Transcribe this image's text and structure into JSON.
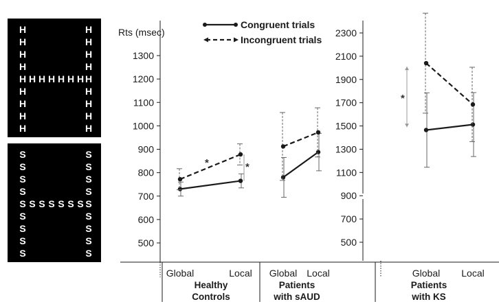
{
  "stimuli": [
    {
      "letter": "H",
      "shape": "H"
    },
    {
      "letter": "S",
      "shape": "H"
    }
  ],
  "chart_data": {
    "type": "line",
    "ylabel": "Rts (msec)",
    "legend_placement": "top",
    "categories": [
      "Global",
      "Local"
    ],
    "groups": [
      {
        "label_lines": [
          "Healthy",
          "Controls"
        ],
        "yticks": [
          500,
          600,
          700,
          800,
          900,
          1000,
          1100,
          1200,
          1300
        ],
        "ylim": [
          420,
          1400
        ],
        "series": [
          {
            "name": "Congruent trials",
            "values": [
              730,
              765
            ],
            "err": [
              30,
              30
            ]
          },
          {
            "name": "Incongruent trials",
            "values": [
              772,
              878
            ],
            "err": [
              45,
              45
            ]
          }
        ],
        "significance": [
          "*",
          "*"
        ]
      },
      {
        "label_lines": [
          "Patients",
          "with sAUD"
        ],
        "series": [
          {
            "name": "Congruent trials",
            "values": [
              780,
              888
            ],
            "err": [
              85,
              80
            ]
          },
          {
            "name": "Incongruent trials",
            "values": [
              912,
              972
            ],
            "err": [
              145,
              105
            ]
          }
        ],
        "significance": []
      },
      {
        "label_lines": [
          "Patients",
          "with KS"
        ],
        "yticks": [
          500,
          700,
          900,
          1100,
          1300,
          1500,
          1700,
          1900,
          2100,
          2300
        ],
        "ylim": [
          200,
          2420
        ],
        "series": [
          {
            "name": "Congruent trials",
            "values": [
              1465,
              1512
            ],
            "err": [
              320,
              275
            ]
          },
          {
            "name": "Incongruent trials",
            "values": [
              2040,
              1685
            ],
            "err": [
              430,
              320
            ]
          }
        ],
        "significance": [
          "*"
        ]
      }
    ],
    "legend": [
      {
        "name": "Congruent trials",
        "style": "solid"
      },
      {
        "name": "Incongruent trials",
        "style": "dashed"
      }
    ],
    "colors": {
      "line": "#1a1a1a",
      "error_bar": "#666666",
      "sig_bracket": "#999999"
    },
    "grid": false
  }
}
